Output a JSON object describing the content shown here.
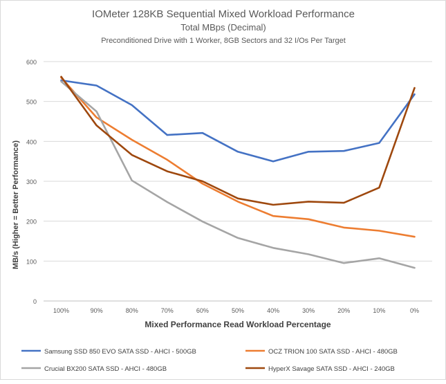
{
  "chart_data": {
    "type": "line",
    "title": "IOMeter 128KB Sequential Mixed Workload Performance",
    "subtitle1": "Total MBps (Decimal)",
    "subtitle2": "Preconditioned  Drive with 1 Worker, 8GB Sectors and 32 I/Os Per Target",
    "xlabel": "Mixed Performance Read Workload Percentage",
    "ylabel": "MB/s (Higher = Better Performance)",
    "categories": [
      "100%",
      "90%",
      "80%",
      "70%",
      "60%",
      "50%",
      "40%",
      "30%",
      "20%",
      "10%",
      "0%"
    ],
    "ylim": [
      0,
      600
    ],
    "yticks": [
      0,
      100,
      200,
      300,
      400,
      500,
      600
    ],
    "grid": true,
    "legend_position": "bottom",
    "series": [
      {
        "name": "Samsung SSD 850 EVO SATA SSD - AHCI - 500GB",
        "color": "#4472c4",
        "values": [
          553,
          540,
          491,
          416,
          421,
          374,
          350,
          374,
          376,
          396,
          518
        ]
      },
      {
        "name": "OCZ TRION 100 SATA SSD - AHCI - 480GB",
        "color": "#ed7d31",
        "values": [
          560,
          460,
          404,
          354,
          294,
          249,
          213,
          205,
          184,
          176,
          161
        ]
      },
      {
        "name": "Crucial BX200 SATA SSD - AHCI - 480GB",
        "color": "#a5a5a5",
        "values": [
          550,
          475,
          302,
          248,
          199,
          158,
          133,
          117,
          95,
          107,
          83
        ]
      },
      {
        "name": "HyperX Savage SATA SSD - AHCI - 240GB",
        "color": "#9e480e",
        "values": [
          562,
          440,
          366,
          325,
          300,
          257,
          241,
          249,
          246,
          284,
          534
        ]
      }
    ]
  }
}
